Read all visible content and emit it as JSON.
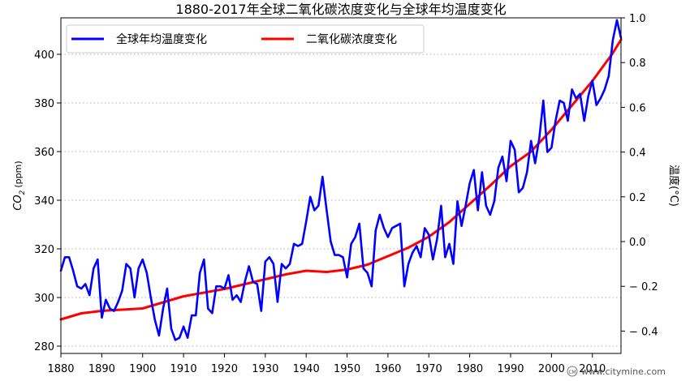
{
  "chart_data": {
    "type": "line",
    "title": "1880-2017年全球二氧化碳浓度变化与全球年均温度变化",
    "xlim": [
      1880,
      2017
    ],
    "x_ticks": [
      "1880",
      "1890",
      "1900",
      "1910",
      "1920",
      "1930",
      "1940",
      "1950",
      "1960",
      "1970",
      "1980",
      "1990",
      "2000",
      "2010"
    ],
    "y_left": {
      "label_main": "CO",
      "label_sub": "2",
      "label_unit": "(ppm)",
      "lim": [
        277,
        415
      ],
      "ticks": [
        "280",
        "300",
        "320",
        "340",
        "360",
        "380",
        "400"
      ]
    },
    "y_right": {
      "label": "温度(°C)",
      "lim": [
        -0.5,
        1.0
      ],
      "ticks": [
        "− 0.4",
        "− 0.2",
        "0.0",
        "0.2",
        "0.4",
        "0.6",
        "0.8",
        "1.0"
      ]
    },
    "grid": "horizontal-dotted",
    "legend_placement": "top",
    "series": [
      {
        "name": "全球年均温度变化",
        "axis": "right",
        "color": "#0000ff",
        "x": [
          1880,
          1881,
          1882,
          1883,
          1884,
          1885,
          1886,
          1887,
          1888,
          1889,
          1890,
          1891,
          1892,
          1893,
          1894,
          1895,
          1896,
          1897,
          1898,
          1899,
          1900,
          1901,
          1902,
          1903,
          1904,
          1905,
          1906,
          1907,
          1908,
          1909,
          1910,
          1911,
          1912,
          1913,
          1914,
          1915,
          1916,
          1917,
          1918,
          1919,
          1920,
          1921,
          1922,
          1923,
          1924,
          1925,
          1926,
          1927,
          1928,
          1929,
          1930,
          1931,
          1932,
          1933,
          1934,
          1935,
          1936,
          1937,
          1938,
          1939,
          1940,
          1941,
          1942,
          1943,
          1944,
          1945,
          1946,
          1947,
          1948,
          1949,
          1950,
          1951,
          1952,
          1953,
          1954,
          1955,
          1956,
          1957,
          1958,
          1959,
          1960,
          1961,
          1962,
          1963,
          1964,
          1965,
          1966,
          1967,
          1968,
          1969,
          1970,
          1971,
          1972,
          1973,
          1974,
          1975,
          1976,
          1977,
          1978,
          1979,
          1980,
          1981,
          1982,
          1983,
          1984,
          1985,
          1986,
          1987,
          1988,
          1989,
          1990,
          1991,
          1992,
          1993,
          1994,
          1995,
          1996,
          1997,
          1998,
          1999,
          2000,
          2001,
          2002,
          2003,
          2004,
          2005,
          2006,
          2007,
          2008,
          2009,
          2010,
          2011,
          2012,
          2013,
          2014,
          2015,
          2016,
          2017
        ],
        "y": [
          -0.13,
          -0.07,
          -0.07,
          -0.13,
          -0.2,
          -0.21,
          -0.19,
          -0.24,
          -0.12,
          -0.08,
          -0.34,
          -0.26,
          -0.3,
          -0.31,
          -0.27,
          -0.22,
          -0.1,
          -0.12,
          -0.25,
          -0.12,
          -0.08,
          -0.14,
          -0.25,
          -0.35,
          -0.42,
          -0.3,
          -0.21,
          -0.39,
          -0.44,
          -0.43,
          -0.38,
          -0.43,
          -0.33,
          -0.33,
          -0.14,
          -0.08,
          -0.3,
          -0.32,
          -0.2,
          -0.2,
          -0.21,
          -0.15,
          -0.26,
          -0.24,
          -0.27,
          -0.18,
          -0.11,
          -0.18,
          -0.19,
          -0.31,
          -0.09,
          -0.07,
          -0.1,
          -0.27,
          -0.1,
          -0.12,
          -0.1,
          -0.01,
          -0.02,
          -0.01,
          0.09,
          0.2,
          0.14,
          0.16,
          0.29,
          0.14,
          0,
          -0.06,
          -0.06,
          -0.07,
          -0.16,
          -0.01,
          0.02,
          0.08,
          -0.12,
          -0.14,
          -0.2,
          0.05,
          0.12,
          0.06,
          0.02,
          0.06,
          0.07,
          0.08,
          -0.2,
          -0.1,
          -0.05,
          -0.02,
          -0.07,
          0.06,
          0.03,
          -0.08,
          0.01,
          0.16,
          -0.07,
          -0.01,
          -0.1,
          0.18,
          0.07,
          0.16,
          0.26,
          0.32,
          0.14,
          0.31,
          0.16,
          0.12,
          0.18,
          0.33,
          0.38,
          0.27,
          0.45,
          0.41,
          0.22,
          0.24,
          0.31,
          0.45,
          0.35,
          0.46,
          0.63,
          0.4,
          0.42,
          0.54,
          0.63,
          0.62,
          0.54,
          0.68,
          0.64,
          0.66,
          0.54,
          0.65,
          0.72,
          0.61,
          0.64,
          0.68,
          0.74,
          0.9,
          0.99,
          0.91
        ]
      },
      {
        "name": "二氧化碳浓度变化",
        "axis": "left",
        "color": "#ff0000",
        "x": [
          1880,
          1885,
          1890,
          1895,
          1900,
          1905,
          1910,
          1915,
          1920,
          1925,
          1930,
          1935,
          1940,
          1945,
          1950,
          1955,
          1960,
          1965,
          1970,
          1975,
          1980,
          1985,
          1990,
          1995,
          2000,
          2005,
          2010,
          2015,
          2017
        ],
        "y": [
          291,
          293.5,
          294.5,
          295,
          295.5,
          298,
          300.5,
          302,
          303.5,
          305.5,
          307.5,
          309.5,
          311,
          310.5,
          311.5,
          313.5,
          317,
          320.5,
          325,
          331,
          338.5,
          346,
          354,
          360,
          369,
          379,
          389,
          400.5,
          406
        ]
      }
    ]
  },
  "watermark": {
    "logo_text": "CM",
    "text": "www.citymine.com"
  }
}
